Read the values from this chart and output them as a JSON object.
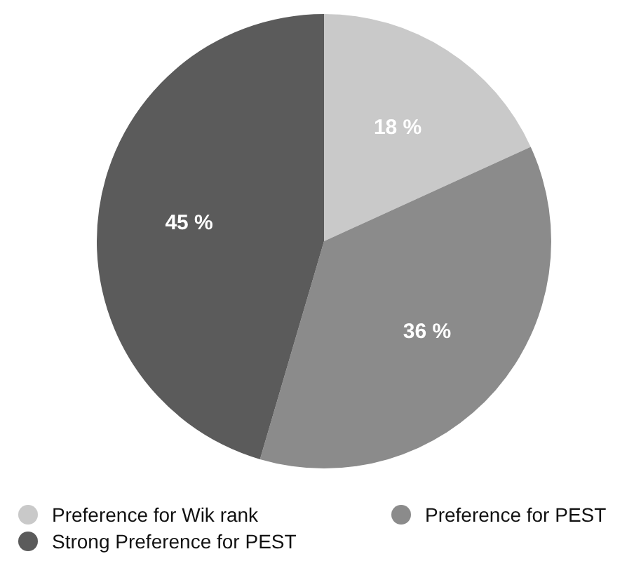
{
  "chart_data": {
    "type": "pie",
    "categories": [
      "Preference for Wik rank",
      "Preference for PEST",
      "Strong Preference for PEST"
    ],
    "values": [
      18,
      36,
      45
    ],
    "colors": [
      "#c9c9c9",
      "#8b8b8b",
      "#5b5b5b"
    ],
    "value_labels": [
      "18 %",
      "36 %",
      "45 %"
    ],
    "legend": "bottom"
  }
}
